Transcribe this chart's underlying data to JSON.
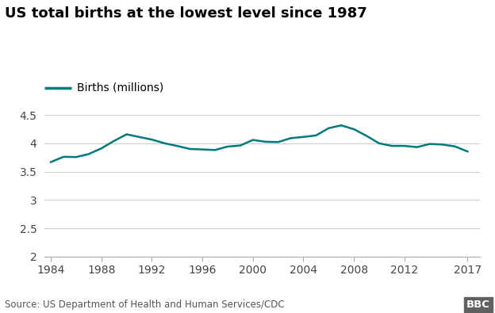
{
  "title": "US total births at the lowest level since 1987",
  "legend_label": "Births (millions)",
  "line_color": "#007a7a",
  "background_color": "#ffffff",
  "source_text": "Source: US Department of Health and Human Services/CDC",
  "bbc_text": "BBC",
  "years": [
    1984,
    1985,
    1986,
    1987,
    1988,
    1989,
    1990,
    1991,
    1992,
    1993,
    1994,
    1995,
    1996,
    1997,
    1998,
    1999,
    2000,
    2001,
    2002,
    2003,
    2004,
    2005,
    2006,
    2007,
    2008,
    2009,
    2010,
    2011,
    2012,
    2013,
    2014,
    2015,
    2016,
    2017
  ],
  "births": [
    3.669,
    3.761,
    3.757,
    3.81,
    3.91,
    4.041,
    4.158,
    4.111,
    4.065,
    4.0,
    3.953,
    3.9,
    3.891,
    3.881,
    3.942,
    3.96,
    4.059,
    4.026,
    4.022,
    4.09,
    4.112,
    4.138,
    4.266,
    4.316,
    4.248,
    4.131,
    3.999,
    3.954,
    3.953,
    3.932,
    3.988,
    3.978,
    3.945,
    3.855
  ],
  "xlim": [
    1983.5,
    2018
  ],
  "ylim": [
    2.0,
    4.65
  ],
  "yticks": [
    2.0,
    2.5,
    3.0,
    3.5,
    4.0,
    4.5
  ],
  "ytick_labels": [
    "2",
    "2.5",
    "3",
    "3.5",
    "4",
    "4.5"
  ],
  "xticks": [
    1984,
    1988,
    1992,
    1996,
    2000,
    2004,
    2008,
    2012,
    2017
  ],
  "title_fontsize": 13,
  "legend_fontsize": 10,
  "tick_fontsize": 10,
  "source_fontsize": 8.5,
  "linewidth": 1.8
}
